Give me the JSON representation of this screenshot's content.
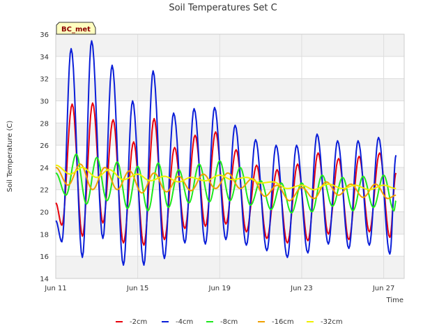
{
  "chart_data": {
    "type": "line",
    "title": "Soil Temperatures Set C",
    "xlabel": "Time",
    "ylabel": "Soil Temperature (C)",
    "ylim": [
      14,
      36
    ],
    "yticks": [
      14,
      16,
      18,
      20,
      22,
      24,
      26,
      28,
      30,
      32,
      34,
      36
    ],
    "xlim_days": [
      0,
      17
    ],
    "xticks": [
      {
        "label": "Jun 11",
        "day": 0
      },
      {
        "label": "Jun 15",
        "day": 4
      },
      {
        "label": "Jun 19",
        "day": 8
      },
      {
        "label": "Jun 23",
        "day": 12
      },
      {
        "label": "Jun 27",
        "day": 16
      }
    ],
    "grid": true,
    "band_shading": true,
    "legend_position": "bottom",
    "station_label": "BC_met",
    "series_approx_daily_extremes_note": "",
    "series": [
      {
        "name": "-2cm",
        "color": "#e8000b",
        "daily": [
          {
            "day": 0.0,
            "value": 20.8
          },
          {
            "day": 0.3,
            "value": 18.8
          },
          {
            "day": 0.8,
            "value": 29.7
          },
          {
            "day": 1.3,
            "value": 17.8
          },
          {
            "day": 1.8,
            "value": 29.8
          },
          {
            "day": 2.3,
            "value": 19.0
          },
          {
            "day": 2.8,
            "value": 28.3
          },
          {
            "day": 3.3,
            "value": 17.2
          },
          {
            "day": 3.8,
            "value": 26.3
          },
          {
            "day": 4.3,
            "value": 17.0
          },
          {
            "day": 4.8,
            "value": 28.4
          },
          {
            "day": 5.3,
            "value": 17.5
          },
          {
            "day": 5.8,
            "value": 25.8
          },
          {
            "day": 6.3,
            "value": 18.5
          },
          {
            "day": 6.8,
            "value": 26.9
          },
          {
            "day": 7.3,
            "value": 18.7
          },
          {
            "day": 7.8,
            "value": 27.2
          },
          {
            "day": 8.3,
            "value": 18.9
          },
          {
            "day": 8.8,
            "value": 25.6
          },
          {
            "day": 9.3,
            "value": 18.2
          },
          {
            "day": 9.8,
            "value": 24.2
          },
          {
            "day": 10.3,
            "value": 17.6
          },
          {
            "day": 10.8,
            "value": 23.8
          },
          {
            "day": 11.3,
            "value": 17.2
          },
          {
            "day": 11.8,
            "value": 24.3
          },
          {
            "day": 12.3,
            "value": 17.4
          },
          {
            "day": 12.8,
            "value": 25.3
          },
          {
            "day": 13.3,
            "value": 18.0
          },
          {
            "day": 13.8,
            "value": 24.8
          },
          {
            "day": 14.3,
            "value": 17.5
          },
          {
            "day": 14.8,
            "value": 25.0
          },
          {
            "day": 15.3,
            "value": 18.2
          },
          {
            "day": 15.8,
            "value": 25.3
          },
          {
            "day": 16.3,
            "value": 17.7
          },
          {
            "day": 16.6,
            "value": 23.5
          }
        ]
      },
      {
        "name": "-4cm",
        "color": "#0a1ed8",
        "daily": [
          {
            "day": 0.0,
            "value": 19.2
          },
          {
            "day": 0.3,
            "value": 17.3
          },
          {
            "day": 0.75,
            "value": 34.7
          },
          {
            "day": 1.3,
            "value": 15.9
          },
          {
            "day": 1.75,
            "value": 35.4
          },
          {
            "day": 2.3,
            "value": 17.6
          },
          {
            "day": 2.75,
            "value": 33.2
          },
          {
            "day": 3.3,
            "value": 15.2
          },
          {
            "day": 3.75,
            "value": 30.0
          },
          {
            "day": 4.3,
            "value": 15.2
          },
          {
            "day": 4.75,
            "value": 32.7
          },
          {
            "day": 5.3,
            "value": 15.8
          },
          {
            "day": 5.75,
            "value": 28.9
          },
          {
            "day": 6.3,
            "value": 17.2
          },
          {
            "day": 6.75,
            "value": 29.3
          },
          {
            "day": 7.3,
            "value": 17.1
          },
          {
            "day": 7.75,
            "value": 29.4
          },
          {
            "day": 8.3,
            "value": 17.5
          },
          {
            "day": 8.75,
            "value": 27.8
          },
          {
            "day": 9.3,
            "value": 17.0
          },
          {
            "day": 9.75,
            "value": 26.5
          },
          {
            "day": 10.3,
            "value": 16.5
          },
          {
            "day": 10.75,
            "value": 26.0
          },
          {
            "day": 11.3,
            "value": 15.9
          },
          {
            "day": 11.75,
            "value": 26.0
          },
          {
            "day": 12.3,
            "value": 16.3
          },
          {
            "day": 12.75,
            "value": 27.0
          },
          {
            "day": 13.3,
            "value": 17.1
          },
          {
            "day": 13.75,
            "value": 26.4
          },
          {
            "day": 14.3,
            "value": 16.7
          },
          {
            "day": 14.75,
            "value": 26.4
          },
          {
            "day": 15.3,
            "value": 17.0
          },
          {
            "day": 15.75,
            "value": 26.7
          },
          {
            "day": 16.3,
            "value": 16.2
          },
          {
            "day": 16.6,
            "value": 25.1
          }
        ]
      },
      {
        "name": "-8cm",
        "color": "#1de81d",
        "daily": [
          {
            "day": 0.0,
            "value": 23.5
          },
          {
            "day": 0.5,
            "value": 21.5
          },
          {
            "day": 1.0,
            "value": 25.2
          },
          {
            "day": 1.5,
            "value": 20.7
          },
          {
            "day": 2.0,
            "value": 24.9
          },
          {
            "day": 2.5,
            "value": 21.0
          },
          {
            "day": 3.0,
            "value": 24.5
          },
          {
            "day": 3.5,
            "value": 20.3
          },
          {
            "day": 4.0,
            "value": 24.1
          },
          {
            "day": 4.5,
            "value": 20.1
          },
          {
            "day": 5.0,
            "value": 24.4
          },
          {
            "day": 5.5,
            "value": 20.4
          },
          {
            "day": 6.0,
            "value": 23.8
          },
          {
            "day": 6.5,
            "value": 20.8
          },
          {
            "day": 7.0,
            "value": 24.3
          },
          {
            "day": 7.5,
            "value": 20.9
          },
          {
            "day": 8.0,
            "value": 24.6
          },
          {
            "day": 8.5,
            "value": 21.0
          },
          {
            "day": 9.0,
            "value": 24.0
          },
          {
            "day": 9.5,
            "value": 20.6
          },
          {
            "day": 10.0,
            "value": 22.8
          },
          {
            "day": 10.5,
            "value": 20.2
          },
          {
            "day": 11.0,
            "value": 22.6
          },
          {
            "day": 11.5,
            "value": 19.9
          },
          {
            "day": 12.0,
            "value": 22.6
          },
          {
            "day": 12.5,
            "value": 20.0
          },
          {
            "day": 13.0,
            "value": 23.3
          },
          {
            "day": 13.5,
            "value": 20.5
          },
          {
            "day": 14.0,
            "value": 23.1
          },
          {
            "day": 14.5,
            "value": 20.1
          },
          {
            "day": 15.0,
            "value": 23.2
          },
          {
            "day": 15.5,
            "value": 20.4
          },
          {
            "day": 16.0,
            "value": 23.3
          },
          {
            "day": 16.5,
            "value": 20.1
          },
          {
            "day": 16.6,
            "value": 21.0
          }
        ]
      },
      {
        "name": "-16cm",
        "color": "#f0a000",
        "daily": [
          {
            "day": 0.0,
            "value": 24.0
          },
          {
            "day": 0.6,
            "value": 22.4
          },
          {
            "day": 1.2,
            "value": 24.3
          },
          {
            "day": 1.8,
            "value": 22.0
          },
          {
            "day": 2.4,
            "value": 24.0
          },
          {
            "day": 3.0,
            "value": 22.0
          },
          {
            "day": 3.6,
            "value": 23.7
          },
          {
            "day": 4.2,
            "value": 21.7
          },
          {
            "day": 4.8,
            "value": 23.5
          },
          {
            "day": 5.4,
            "value": 21.8
          },
          {
            "day": 6.0,
            "value": 23.2
          },
          {
            "day": 6.6,
            "value": 21.9
          },
          {
            "day": 7.2,
            "value": 23.4
          },
          {
            "day": 7.8,
            "value": 22.1
          },
          {
            "day": 8.4,
            "value": 23.5
          },
          {
            "day": 9.0,
            "value": 22.1
          },
          {
            "day": 9.6,
            "value": 23.0
          },
          {
            "day": 10.2,
            "value": 21.4
          },
          {
            "day": 10.8,
            "value": 22.4
          },
          {
            "day": 11.4,
            "value": 21.0
          },
          {
            "day": 12.0,
            "value": 22.2
          },
          {
            "day": 12.6,
            "value": 21.2
          },
          {
            "day": 13.2,
            "value": 22.7
          },
          {
            "day": 13.8,
            "value": 21.5
          },
          {
            "day": 14.4,
            "value": 22.5
          },
          {
            "day": 15.0,
            "value": 21.3
          },
          {
            "day": 15.6,
            "value": 22.5
          },
          {
            "day": 16.2,
            "value": 21.2
          },
          {
            "day": 16.6,
            "value": 21.5
          }
        ]
      },
      {
        "name": "-32cm",
        "color": "#f0f000",
        "daily": [
          {
            "day": 0.0,
            "value": 24.2
          },
          {
            "day": 0.7,
            "value": 23.4
          },
          {
            "day": 1.3,
            "value": 24.0
          },
          {
            "day": 2.0,
            "value": 23.1
          },
          {
            "day": 2.6,
            "value": 23.8
          },
          {
            "day": 3.3,
            "value": 22.9
          },
          {
            "day": 4.0,
            "value": 23.4
          },
          {
            "day": 4.6,
            "value": 22.8
          },
          {
            "day": 5.3,
            "value": 23.2
          },
          {
            "day": 6.0,
            "value": 22.7
          },
          {
            "day": 6.6,
            "value": 23.1
          },
          {
            "day": 7.3,
            "value": 22.8
          },
          {
            "day": 8.0,
            "value": 23.3
          },
          {
            "day": 8.6,
            "value": 22.9
          },
          {
            "day": 9.3,
            "value": 23.1
          },
          {
            "day": 10.0,
            "value": 22.6
          },
          {
            "day": 10.6,
            "value": 22.7
          },
          {
            "day": 11.3,
            "value": 22.1
          },
          {
            "day": 12.0,
            "value": 22.4
          },
          {
            "day": 12.6,
            "value": 22.0
          },
          {
            "day": 13.3,
            "value": 22.5
          },
          {
            "day": 14.0,
            "value": 22.1
          },
          {
            "day": 14.6,
            "value": 22.4
          },
          {
            "day": 15.3,
            "value": 22.0
          },
          {
            "day": 16.0,
            "value": 22.4
          },
          {
            "day": 16.6,
            "value": 22.1
          }
        ]
      }
    ]
  }
}
